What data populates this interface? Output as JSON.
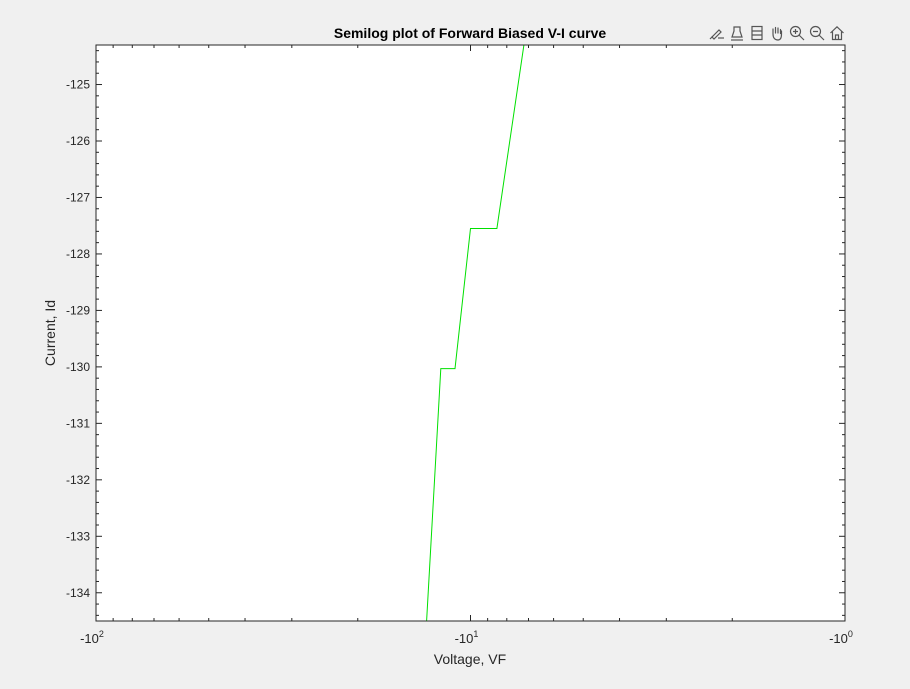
{
  "toolbar": {
    "icons": [
      "brush-icon",
      "data-tips-icon",
      "colorbar-icon",
      "pan-hand-icon",
      "zoom-in-icon",
      "zoom-out-icon",
      "home-icon"
    ]
  },
  "chart_data": {
    "type": "line",
    "title": "Semilog plot of Forward Biased V-I curve",
    "xlabel": "Voltage, VF",
    "ylabel": "Current, Id",
    "xscale": "log (negative values)",
    "xlim": [
      -100,
      -1
    ],
    "ylim": [
      -134.5,
      -124.3
    ],
    "grid": false,
    "line_color": "#00e000",
    "x_ticks": [
      {
        "base": "-10",
        "exp": "2"
      },
      {
        "base": "-10",
        "exp": "1"
      },
      {
        "base": "-10",
        "exp": "0"
      }
    ],
    "y_ticks": [
      "-125",
      "-126",
      "-127",
      "-128",
      "-129",
      "-130",
      "-131",
      "-132",
      "-133",
      "-134"
    ],
    "series": [
      {
        "x": [
          -13.1,
          -12.0,
          -11.0,
          -10.0,
          -8.5,
          -7.2,
          -6.3,
          -6.1
        ],
        "y": [
          -134.5,
          -130.03,
          -130.03,
          -127.55,
          -127.55,
          -124.3,
          -124.3,
          -124.3
        ]
      }
    ]
  }
}
